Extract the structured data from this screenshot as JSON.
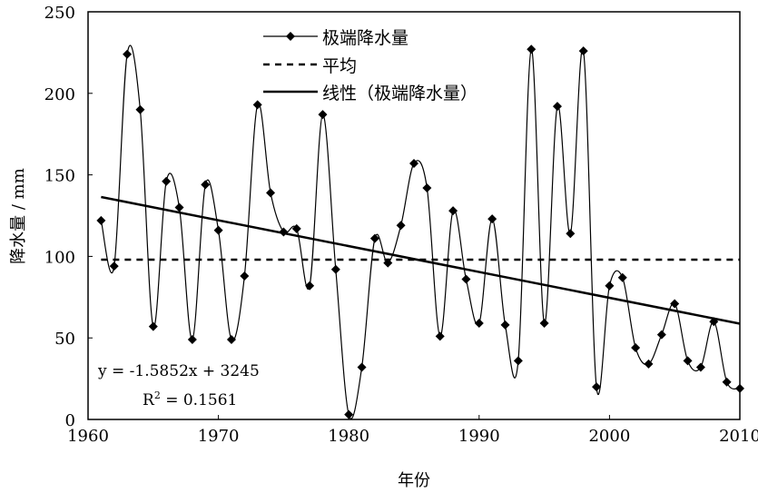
{
  "chart_data": {
    "type": "line",
    "title": "",
    "xlabel": "年份",
    "ylabel": "降水量 / mm",
    "xlim": [
      1960,
      2010
    ],
    "ylim": [
      0,
      250
    ],
    "xticks": [
      "1960",
      "1970",
      "1980",
      "1990",
      "2000",
      "2010"
    ],
    "yticks": [
      "0",
      "50",
      "100",
      "150",
      "200",
      "250"
    ],
    "grid": false,
    "legend_position": "top-center",
    "x": [
      1961,
      1962,
      1963,
      1964,
      1965,
      1966,
      1967,
      1968,
      1969,
      1970,
      1971,
      1972,
      1973,
      1974,
      1975,
      1976,
      1977,
      1978,
      1979,
      1980,
      1981,
      1982,
      1983,
      1984,
      1985,
      1986,
      1987,
      1988,
      1989,
      1990,
      1991,
      1992,
      1993,
      1994,
      1995,
      1996,
      1997,
      1998,
      1999,
      2000,
      2001,
      2002,
      2003,
      2004,
      2005,
      2006,
      2007,
      2008,
      2009,
      2010
    ],
    "series": [
      {
        "name": "极端降水量",
        "style": "smooth line with diamond markers",
        "values": [
          122,
          94,
          224,
          190,
          57,
          146,
          130,
          49,
          144,
          116,
          49,
          88,
          193,
          139,
          115,
          117,
          82,
          187,
          92,
          3,
          32,
          111,
          96,
          119,
          157,
          142,
          51,
          128,
          86,
          59,
          123,
          58,
          36,
          227,
          59,
          192,
          114,
          226,
          20,
          82,
          87,
          44,
          34,
          52,
          71,
          36,
          32,
          60,
          23,
          19
        ]
      },
      {
        "name": "平均",
        "style": "dashed",
        "value": 98
      },
      {
        "name": "线性（极端降水量）",
        "style": "solid",
        "slope": -1.5852,
        "intercept": 3245
      }
    ],
    "annotations": {
      "equation": "y = -1.5852x + 3245",
      "r2_prefix": "R",
      "r2_sup": "2",
      "r2_value": " = 0.1561"
    }
  }
}
